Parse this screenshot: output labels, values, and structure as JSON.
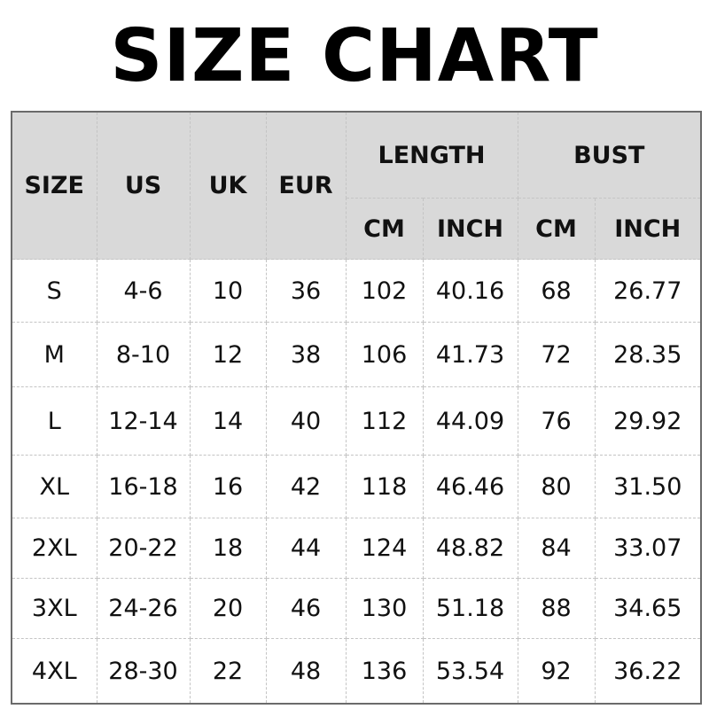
{
  "title": "SIZE CHART",
  "headers": {
    "size": "SIZE",
    "us": "US",
    "uk": "UK",
    "eur": "EUR",
    "length": "LENGTH",
    "bust": "BUST",
    "length_cm": "CM",
    "length_inch": "INCH",
    "bust_cm": "CM",
    "bust_inch": "INCH"
  },
  "rows": [
    [
      "S",
      "4-6",
      "10",
      "36",
      "102",
      "40.16",
      "68",
      "26.77"
    ],
    [
      "M",
      "8-10",
      "12",
      "38",
      "106",
      "41.73",
      "72",
      "28.35"
    ],
    [
      "L",
      "12-14",
      "14",
      "40",
      "112",
      "44.09",
      "76",
      "29.92"
    ],
    [
      "XL",
      "16-18",
      "16",
      "42",
      "118",
      "46.46",
      "80",
      "31.50"
    ],
    [
      "2XL",
      "20-22",
      "18",
      "44",
      "124",
      "48.82",
      "84",
      "33.07"
    ],
    [
      "3XL",
      "24-26",
      "20",
      "46",
      "130",
      "51.18",
      "88",
      "34.65"
    ],
    [
      "4XL",
      "28-30",
      "22",
      "48",
      "136",
      "53.54",
      "92",
      "36.22"
    ]
  ],
  "colors": {
    "header_bg": "#d9d9d9",
    "border": "#6b6b6b",
    "grid": "#c4c4c4"
  }
}
